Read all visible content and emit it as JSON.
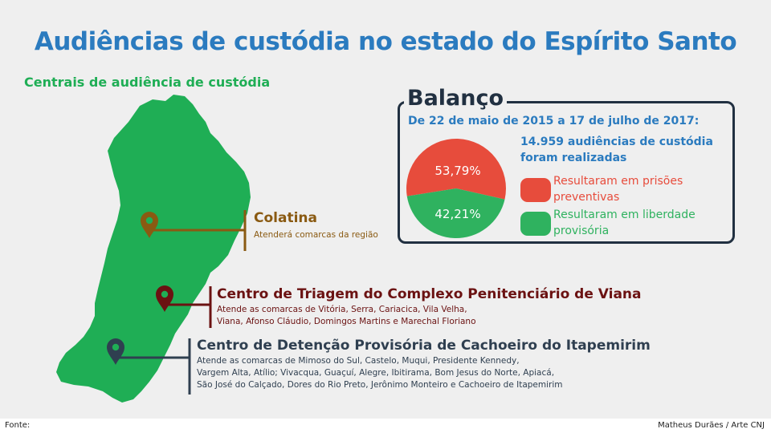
{
  "title": "Audiências de custódia no estado do Espírito Santo",
  "subtitle": "Centrais de audiência de custódia",
  "colors": {
    "title_blue": "#2b7bbf",
    "map_green": "#1fae55",
    "colatina_brown": "#8a5a12",
    "viana_maroon": "#6b1212",
    "cachoeiro_navy": "#2f3f50",
    "prison_red": "#e74c3c",
    "freedom_green": "#2fb25f",
    "box_dark": "#213041"
  },
  "icons": [
    "map-pin-icon"
  ],
  "locations": {
    "colatina": {
      "name": "Colatina",
      "description": "Atenderá comarcas da região"
    },
    "viana": {
      "name": "Centro de Triagem do Complexo Penitenciário de Viana",
      "description_lines": [
        "Atende as comarcas de Vitória, Serra, Cariacica, Vila Velha,",
        "Viana, Afonso Cláudio, Domingos Martins e Marechal Floriano"
      ]
    },
    "cachoeiro": {
      "name": "Centro de Detenção Provisória de Cachoeiro do Itapemirim",
      "description_lines": [
        "Atende as comarcas de Mimoso do Sul, Castelo, Muqui, Presidente Kennedy,",
        "Vargem Alta, Atílio; Vivacqua, Guaçuí, Alegre, Ibitirama, Bom Jesus do Norte, Apiacá,",
        "São José do Calçado, Dores do Rio Preto, Jerônimo Monteiro e Cachoeiro de Itapemirim"
      ]
    }
  },
  "balanco": {
    "title": "Balanço",
    "period": "De 22 de maio de 2015 a 17 de julho de 2017:",
    "total_lines": [
      "14.959 audiências de custódia",
      "foram realizadas"
    ],
    "prisoes": {
      "percent_label": "53,79%",
      "value": 53.79,
      "legend_lines": [
        "Resultaram em prisões",
        "preventivas"
      ]
    },
    "liberdade": {
      "percent_label": "42,21%",
      "value": 42.21,
      "legend_lines": [
        "Resultaram em liberdade",
        "provisória"
      ]
    }
  },
  "footer": {
    "source_label": "Fonte:",
    "credit": "Matheus Durães / Arte CNJ"
  }
}
